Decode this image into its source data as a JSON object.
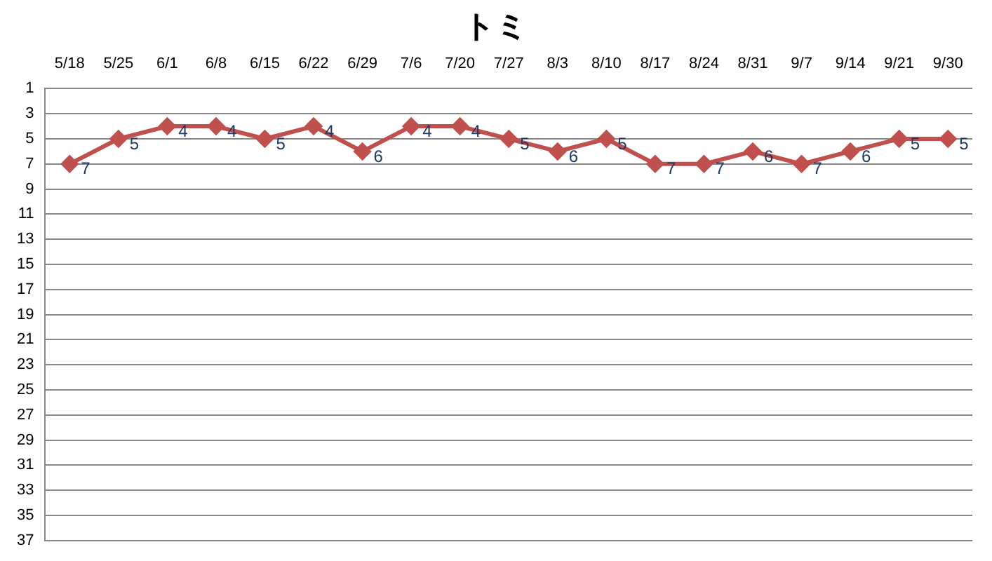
{
  "chart_data": {
    "type": "line",
    "title": "トミ",
    "categories": [
      "5/18",
      "5/25",
      "6/1",
      "6/8",
      "6/15",
      "6/22",
      "6/29",
      "7/6",
      "7/20",
      "7/27",
      "8/3",
      "8/10",
      "8/17",
      "8/24",
      "8/31",
      "9/7",
      "9/14",
      "9/21",
      "9/30"
    ],
    "series": [
      {
        "color": "#c0504d",
        "values": [
          7,
          5,
          4,
          4,
          5,
          4,
          6,
          4,
          4,
          5,
          6,
          5,
          7,
          7,
          6,
          7,
          6,
          5,
          5
        ]
      }
    ],
    "ylim": [
      37,
      1
    ],
    "yticks": [
      1,
      3,
      5,
      7,
      9,
      11,
      13,
      15,
      17,
      19,
      21,
      23,
      25,
      27,
      29,
      31,
      33,
      35,
      37
    ],
    "grid": "y",
    "legend": false,
    "marker": "diamond",
    "line_style": "solid",
    "data_labels": true
  }
}
